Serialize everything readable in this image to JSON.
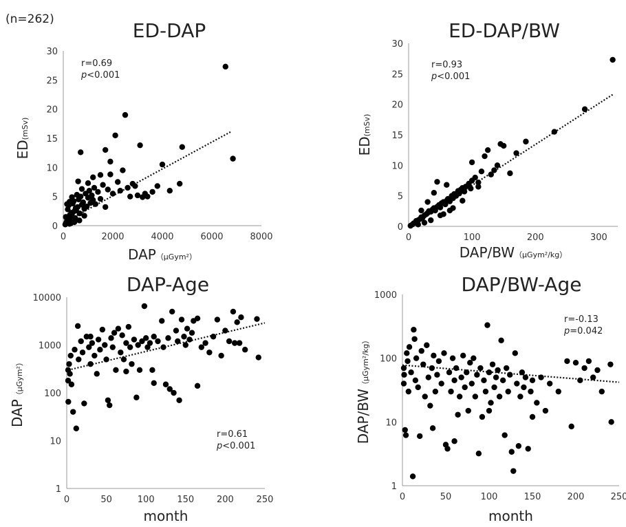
{
  "note": "(n=262)",
  "chart_data": [
    {
      "type": "scatter",
      "title": "ED-DAP",
      "xlabel": "DAP",
      "xlabel_unit": "（μGym²）",
      "ylabel": "ED",
      "ylabel_unit": "(mSv)",
      "xlim": [
        0,
        8000
      ],
      "ylim": [
        0,
        30
      ],
      "xticks": [
        0,
        2000,
        4000,
        6000,
        8000
      ],
      "yticks": [
        0,
        5,
        10,
        15,
        20,
        25,
        30
      ],
      "annotation": {
        "r": "r=0.69",
        "p": "p<0.001"
      },
      "trendline": {
        "style": "dotted",
        "x": [
          0,
          6800
        ],
        "y": [
          0.5,
          16.2
        ]
      },
      "points": [
        [
          80,
          0.2
        ],
        [
          120,
          0.5
        ],
        [
          150,
          0.9
        ],
        [
          200,
          1.2
        ],
        [
          250,
          0.3
        ],
        [
          300,
          1.5
        ],
        [
          350,
          2.0
        ],
        [
          400,
          1.0
        ],
        [
          450,
          2.5
        ],
        [
          500,
          3.0
        ],
        [
          180,
          2.8
        ],
        [
          220,
          3.5
        ],
        [
          260,
          1.8
        ],
        [
          320,
          2.2
        ],
        [
          380,
          3.8
        ],
        [
          420,
          4.2
        ],
        [
          480,
          1.3
        ],
        [
          520,
          2.6
        ],
        [
          580,
          3.2
        ],
        [
          620,
          4.5
        ],
        [
          660,
          2.1
        ],
        [
          700,
          5.0
        ],
        [
          750,
          3.6
        ],
        [
          800,
          4.0
        ],
        [
          850,
          2.9
        ],
        [
          900,
          5.5
        ],
        [
          950,
          3.3
        ],
        [
          1000,
          4.8
        ],
        [
          1050,
          6.0
        ],
        [
          1100,
          3.9
        ],
        [
          1150,
          5.2
        ],
        [
          1200,
          4.4
        ],
        [
          1250,
          6.5
        ],
        [
          1300,
          3.7
        ],
        [
          1400,
          5.8
        ],
        [
          1500,
          4.6
        ],
        [
          1600,
          7.0
        ],
        [
          1700,
          3.2
        ],
        [
          1800,
          6.2
        ],
        [
          1900,
          8.8
        ],
        [
          2000,
          5.5
        ],
        [
          2100,
          15.5
        ],
        [
          2200,
          7.5
        ],
        [
          2300,
          6.0
        ],
        [
          2400,
          9.5
        ],
        [
          2500,
          19.0
        ],
        [
          2600,
          6.5
        ],
        [
          2700,
          5.0
        ],
        [
          2800,
          7.2
        ],
        [
          2900,
          6.8
        ],
        [
          3000,
          5.2
        ],
        [
          3100,
          13.8
        ],
        [
          3200,
          4.9
        ],
        [
          3300,
          5.5
        ],
        [
          3400,
          5.0
        ],
        [
          3600,
          5.8
        ],
        [
          3800,
          6.8
        ],
        [
          4000,
          10.5
        ],
        [
          4300,
          6.0
        ],
        [
          4700,
          7.2
        ],
        [
          4800,
          13.5
        ],
        [
          6550,
          27.3
        ],
        [
          6850,
          11.5
        ],
        [
          700,
          12.6
        ],
        [
          1700,
          13.0
        ],
        [
          1900,
          11.0
        ],
        [
          1200,
          8.3
        ],
        [
          1500,
          8.7
        ],
        [
          1000,
          7.3
        ],
        [
          600,
          7.6
        ],
        [
          150,
          3.7
        ],
        [
          250,
          4.1
        ],
        [
          350,
          4.9
        ],
        [
          550,
          5.3
        ],
        [
          750,
          6.3
        ],
        [
          450,
          0.6
        ],
        [
          650,
          0.9
        ],
        [
          850,
          1.7
        ],
        [
          300,
          0.4
        ],
        [
          100,
          1.5
        ]
      ]
    },
    {
      "type": "scatter",
      "title": "ED-DAP/BW",
      "xlabel": "DAP/BW",
      "xlabel_unit": "（μGym²/kg）",
      "ylabel": "ED",
      "ylabel_unit": "(mSv)",
      "xlim": [
        0,
        330
      ],
      "ylim": [
        0,
        30
      ],
      "xticks": [
        0,
        100,
        200,
        300
      ],
      "yticks": [
        0,
        5,
        10,
        15,
        20,
        25,
        30
      ],
      "annotation": {
        "r": "r=0.93",
        "p": "p<0.001"
      },
      "trendline": {
        "style": "dotted",
        "x": [
          0,
          322
        ],
        "y": [
          0,
          21.6
        ]
      },
      "points": [
        [
          3,
          0.1
        ],
        [
          6,
          0.3
        ],
        [
          8,
          0.5
        ],
        [
          10,
          0.6
        ],
        [
          12,
          0.9
        ],
        [
          15,
          1.0
        ],
        [
          18,
          1.2
        ],
        [
          20,
          1.5
        ],
        [
          22,
          1.4
        ],
        [
          25,
          1.8
        ],
        [
          28,
          2.0
        ],
        [
          30,
          2.2
        ],
        [
          32,
          2.5
        ],
        [
          35,
          2.4
        ],
        [
          38,
          2.8
        ],
        [
          40,
          3.0
        ],
        [
          42,
          2.6
        ],
        [
          45,
          3.2
        ],
        [
          48,
          3.5
        ],
        [
          50,
          3.1
        ],
        [
          52,
          3.8
        ],
        [
          55,
          4.0
        ],
        [
          58,
          3.6
        ],
        [
          60,
          4.2
        ],
        [
          62,
          4.5
        ],
        [
          65,
          4.1
        ],
        [
          68,
          5.0
        ],
        [
          70,
          4.6
        ],
        [
          72,
          5.3
        ],
        [
          75,
          5.0
        ],
        [
          78,
          5.8
        ],
        [
          80,
          5.4
        ],
        [
          82,
          6.0
        ],
        [
          85,
          6.3
        ],
        [
          88,
          5.7
        ],
        [
          90,
          6.5
        ],
        [
          95,
          7.0
        ],
        [
          98,
          6.2
        ],
        [
          100,
          7.5
        ],
        [
          105,
          8.0
        ],
        [
          110,
          7.2
        ],
        [
          115,
          9.0
        ],
        [
          120,
          11.5
        ],
        [
          125,
          12.5
        ],
        [
          130,
          8.5
        ],
        [
          135,
          9.2
        ],
        [
          140,
          10.0
        ],
        [
          145,
          13.5
        ],
        [
          150,
          13.2
        ],
        [
          160,
          8.7
        ],
        [
          170,
          12.0
        ],
        [
          185,
          13.9
        ],
        [
          230,
          15.5
        ],
        [
          278,
          19.2
        ],
        [
          322,
          27.3
        ],
        [
          45,
          7.3
        ],
        [
          100,
          10.5
        ],
        [
          35,
          1.0
        ],
        [
          25,
          0.6
        ],
        [
          55,
          2.0
        ],
        [
          70,
          3.0
        ],
        [
          85,
          4.2
        ],
        [
          40,
          5.5
        ],
        [
          30,
          4.0
        ],
        [
          60,
          6.8
        ],
        [
          110,
          6.5
        ],
        [
          20,
          2.6
        ],
        [
          15,
          0.3
        ],
        [
          50,
          1.8
        ],
        [
          65,
          2.6
        ]
      ]
    },
    {
      "type": "scatter",
      "title": "DAP-Age",
      "xlabel": "month",
      "ylabel": "DAP",
      "ylabel_unit": "（μGym²）",
      "yscale": "log",
      "xlim": [
        0,
        250
      ],
      "ylim": [
        1,
        10000
      ],
      "xticks": [
        0,
        50,
        100,
        150,
        200,
        250
      ],
      "yticks": [
        1,
        10,
        100,
        1000,
        10000
      ],
      "annotation": {
        "r": "r=0.61",
        "p": "p<0.001"
      },
      "trendline": {
        "style": "dotted",
        "x": [
          2,
          250
        ],
        "y": [
          300,
          2900
        ]
      },
      "points": [
        [
          0,
          300
        ],
        [
          1,
          180
        ],
        [
          2,
          65
        ],
        [
          3,
          400
        ],
        [
          4,
          250
        ],
        [
          5,
          600
        ],
        [
          6,
          150
        ],
        [
          8,
          40
        ],
        [
          10,
          800
        ],
        [
          12,
          18
        ],
        [
          14,
          2500
        ],
        [
          15,
          500
        ],
        [
          18,
          1200
        ],
        [
          20,
          700
        ],
        [
          22,
          60
        ],
        [
          25,
          1500
        ],
        [
          28,
          900
        ],
        [
          30,
          400
        ],
        [
          32,
          1100
        ],
        [
          35,
          600
        ],
        [
          38,
          250
        ],
        [
          40,
          1300
        ],
        [
          42,
          800
        ],
        [
          45,
          2100
        ],
        [
          48,
          1000
        ],
        [
          50,
          500
        ],
        [
          52,
          70
        ],
        [
          54,
          55
        ],
        [
          56,
          1400
        ],
        [
          58,
          900
        ],
        [
          60,
          1800
        ],
        [
          62,
          300
        ],
        [
          65,
          2200
        ],
        [
          68,
          700
        ],
        [
          70,
          1600
        ],
        [
          72,
          500
        ],
        [
          75,
          1100
        ],
        [
          78,
          2400
        ],
        [
          80,
          900
        ],
        [
          82,
          400
        ],
        [
          85,
          1300
        ],
        [
          88,
          80
        ],
        [
          90,
          1000
        ],
        [
          92,
          300
        ],
        [
          95,
          1200
        ],
        [
          98,
          6500
        ],
        [
          100,
          1400
        ],
        [
          102,
          900
        ],
        [
          105,
          1100
        ],
        [
          108,
          300
        ],
        [
          110,
          1500
        ],
        [
          115,
          1200
        ],
        [
          120,
          3200
        ],
        [
          122,
          900
        ],
        [
          125,
          150
        ],
        [
          128,
          1400
        ],
        [
          130,
          120
        ],
        [
          133,
          5000
        ],
        [
          135,
          100
        ],
        [
          138,
          2000
        ],
        [
          140,
          1200
        ],
        [
          142,
          70
        ],
        [
          145,
          3400
        ],
        [
          148,
          1500
        ],
        [
          150,
          1000
        ],
        [
          152,
          2200
        ],
        [
          155,
          1300
        ],
        [
          158,
          1800
        ],
        [
          160,
          3200
        ],
        [
          165,
          140
        ],
        [
          170,
          900
        ],
        [
          175,
          1100
        ],
        [
          180,
          700
        ],
        [
          185,
          1500
        ],
        [
          190,
          3400
        ],
        [
          195,
          600
        ],
        [
          200,
          2000
        ],
        [
          205,
          1200
        ],
        [
          210,
          5000
        ],
        [
          212,
          1100
        ],
        [
          215,
          3000
        ],
        [
          218,
          1100
        ],
        [
          220,
          3800
        ],
        [
          225,
          800
        ],
        [
          240,
          3500
        ],
        [
          242,
          550
        ],
        [
          165,
          3600
        ],
        [
          110,
          160
        ],
        [
          75,
          280
        ],
        [
          30,
          1500
        ]
      ]
    },
    {
      "type": "scatter",
      "title": "DAP/BW-Age",
      "xlabel": "month",
      "ylabel": "DAP/BW",
      "ylabel_unit": "（μGym²/kg）",
      "yscale": "log",
      "xlim": [
        0,
        250
      ],
      "ylim": [
        1,
        1000
      ],
      "xticks": [
        0,
        50,
        100,
        150,
        200,
        250
      ],
      "yticks": [
        1,
        10,
        100,
        1000
      ],
      "annotation": {
        "r": "r=-0.13",
        "p": "p=0.042"
      },
      "trendline": {
        "style": "dotted",
        "x": [
          0,
          250
        ],
        "y": [
          78,
          42
        ]
      },
      "points": [
        [
          0,
          70
        ],
        [
          1,
          40
        ],
        [
          2,
          55
        ],
        [
          3,
          7.5
        ],
        [
          4,
          6.2
        ],
        [
          5,
          120
        ],
        [
          6,
          90
        ],
        [
          7,
          30
        ],
        [
          8,
          150
        ],
        [
          10,
          60
        ],
        [
          12,
          1.4
        ],
        [
          13,
          280
        ],
        [
          14,
          200
        ],
        [
          15,
          45
        ],
        [
          16,
          100
        ],
        [
          18,
          35
        ],
        [
          20,
          6.0
        ],
        [
          22,
          130
        ],
        [
          24,
          80
        ],
        [
          26,
          25
        ],
        [
          28,
          160
        ],
        [
          30,
          50
        ],
        [
          32,
          18
        ],
        [
          34,
          70
        ],
        [
          36,
          110
        ],
        [
          38,
          30
        ],
        [
          40,
          55
        ],
        [
          42,
          90
        ],
        [
          45,
          40
        ],
        [
          48,
          120
        ],
        [
          50,
          4.4
        ],
        [
          52,
          3.8
        ],
        [
          54,
          60
        ],
        [
          56,
          30
        ],
        [
          58,
          100
        ],
        [
          60,
          45
        ],
        [
          62,
          70
        ],
        [
          64,
          13
        ],
        [
          66,
          25
        ],
        [
          68,
          50
        ],
        [
          70,
          110
        ],
        [
          72,
          35
        ],
        [
          74,
          60
        ],
        [
          76,
          15
        ],
        [
          78,
          85
        ],
        [
          80,
          40
        ],
        [
          82,
          100
        ],
        [
          84,
          25
        ],
        [
          86,
          55
        ],
        [
          88,
          3.2
        ],
        [
          90,
          70
        ],
        [
          92,
          12
        ],
        [
          94,
          45
        ],
        [
          96,
          30
        ],
        [
          98,
          330
        ],
        [
          100,
          60
        ],
        [
          102,
          20
        ],
        [
          104,
          80
        ],
        [
          106,
          35
        ],
        [
          108,
          50
        ],
        [
          110,
          65
        ],
        [
          112,
          25
        ],
        [
          114,
          190
        ],
        [
          116,
          45
        ],
        [
          118,
          6.2
        ],
        [
          120,
          70
        ],
        [
          122,
          30
        ],
        [
          124,
          55
        ],
        [
          126,
          3.4
        ],
        [
          128,
          1.7
        ],
        [
          130,
          120
        ],
        [
          132,
          40
        ],
        [
          134,
          4.2
        ],
        [
          136,
          25
        ],
        [
          138,
          60
        ],
        [
          140,
          35
        ],
        [
          142,
          50
        ],
        [
          145,
          3.8
        ],
        [
          148,
          30
        ],
        [
          150,
          45
        ],
        [
          155,
          20
        ],
        [
          160,
          50
        ],
        [
          165,
          15
        ],
        [
          170,
          40
        ],
        [
          180,
          30
        ],
        [
          190,
          90
        ],
        [
          195,
          8.5
        ],
        [
          200,
          85
        ],
        [
          205,
          45
        ],
        [
          210,
          70
        ],
        [
          215,
          90
        ],
        [
          220,
          50
        ],
        [
          225,
          65
        ],
        [
          240,
          80
        ],
        [
          241,
          10
        ],
        [
          60,
          5.0
        ],
        [
          35,
          8.0
        ],
        [
          100,
          15
        ],
        [
          150,
          12
        ],
        [
          230,
          30
        ]
      ]
    }
  ]
}
